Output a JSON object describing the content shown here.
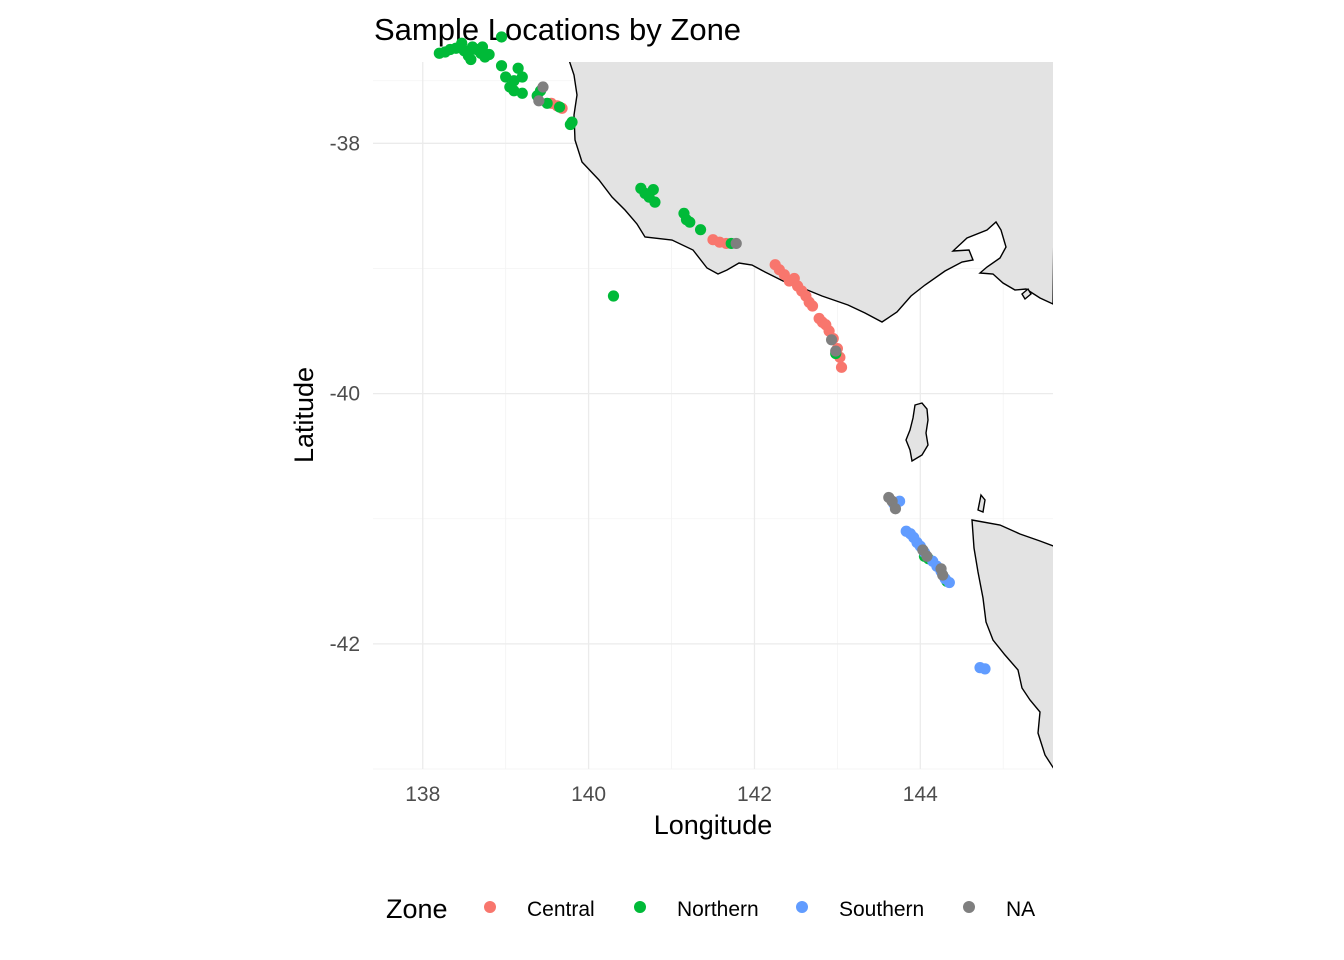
{
  "chart_data": {
    "type": "scatter",
    "title": "Sample Locations by Zone",
    "xlabel": "Longitude",
    "ylabel": "Latitude",
    "xlim": [
      137.4,
      145.6
    ],
    "ylim": [
      -43.0,
      -37.35
    ],
    "x_ticks": [
      {
        "value": 138,
        "label": "138"
      },
      {
        "value": 140,
        "label": "140"
      },
      {
        "value": 142,
        "label": "142"
      },
      {
        "value": 144,
        "label": "144"
      }
    ],
    "y_ticks": [
      {
        "value": -38,
        "label": "-38"
      },
      {
        "value": -40,
        "label": "-40"
      },
      {
        "value": -42,
        "label": "-42"
      }
    ],
    "grid": true,
    "legend": {
      "title": "Zone",
      "position": "bottom"
    },
    "basemap": "coastline with land filled light grey",
    "series": [
      {
        "name": "Central",
        "color": "#F8766D",
        "points": [
          [
            139.55,
            -37.68
          ],
          [
            139.62,
            -37.7
          ],
          [
            139.68,
            -37.72
          ],
          [
            141.5,
            -38.77
          ],
          [
            141.58,
            -38.79
          ],
          [
            141.66,
            -38.8
          ],
          [
            142.25,
            -38.97
          ],
          [
            142.3,
            -39.01
          ],
          [
            142.36,
            -39.05
          ],
          [
            142.42,
            -39.1
          ],
          [
            142.48,
            -39.08
          ],
          [
            142.52,
            -39.14
          ],
          [
            142.57,
            -39.18
          ],
          [
            142.62,
            -39.22
          ],
          [
            142.66,
            -39.27
          ],
          [
            142.7,
            -39.3
          ],
          [
            142.78,
            -39.4
          ],
          [
            142.82,
            -39.43
          ],
          [
            142.86,
            -39.45
          ],
          [
            142.9,
            -39.5
          ],
          [
            142.95,
            -39.56
          ],
          [
            143.0,
            -39.64
          ],
          [
            143.03,
            -39.71
          ],
          [
            143.05,
            -39.79
          ]
        ]
      },
      {
        "name": "Northern",
        "color": "#00BA38",
        "points": [
          [
            138.2,
            -37.28
          ],
          [
            138.27,
            -37.27
          ],
          [
            138.33,
            -37.25
          ],
          [
            138.4,
            -37.24
          ],
          [
            138.46,
            -37.22
          ],
          [
            138.5,
            -37.26
          ],
          [
            138.55,
            -37.3
          ],
          [
            138.6,
            -37.23
          ],
          [
            138.65,
            -37.25
          ],
          [
            138.7,
            -37.28
          ],
          [
            138.75,
            -37.31
          ],
          [
            138.8,
            -37.29
          ],
          [
            138.47,
            -37.2
          ],
          [
            138.58,
            -37.33
          ],
          [
            138.72,
            -37.23
          ],
          [
            138.95,
            -37.15
          ],
          [
            138.95,
            -37.38
          ],
          [
            139.0,
            -37.47
          ],
          [
            139.05,
            -37.55
          ],
          [
            139.1,
            -37.58
          ],
          [
            139.15,
            -37.4
          ],
          [
            139.2,
            -37.47
          ],
          [
            139.1,
            -37.5
          ],
          [
            139.2,
            -37.6
          ],
          [
            139.38,
            -37.62
          ],
          [
            139.42,
            -37.58
          ],
          [
            139.5,
            -37.68
          ],
          [
            139.65,
            -37.71
          ],
          [
            139.8,
            -37.83
          ],
          [
            139.78,
            -37.85
          ],
          [
            140.3,
            -39.22
          ],
          [
            140.63,
            -38.36
          ],
          [
            140.68,
            -38.4
          ],
          [
            140.73,
            -38.43
          ],
          [
            140.78,
            -38.37
          ],
          [
            140.8,
            -38.47
          ],
          [
            141.15,
            -38.56
          ],
          [
            141.18,
            -38.61
          ],
          [
            141.22,
            -38.63
          ],
          [
            141.35,
            -38.69
          ],
          [
            141.72,
            -38.8
          ],
          [
            142.98,
            -39.68
          ],
          [
            144.05,
            -41.3
          ],
          [
            144.1,
            -41.32
          ],
          [
            144.32,
            -41.5
          ]
        ]
      },
      {
        "name": "Southern",
        "color": "#619CFF",
        "points": [
          [
            143.68,
            -40.88
          ],
          [
            143.75,
            -40.86
          ],
          [
            143.83,
            -41.1
          ],
          [
            143.88,
            -41.12
          ],
          [
            143.92,
            -41.15
          ],
          [
            143.96,
            -41.19
          ],
          [
            144.0,
            -41.22
          ],
          [
            144.05,
            -41.27
          ],
          [
            144.15,
            -41.34
          ],
          [
            144.2,
            -41.38
          ],
          [
            144.25,
            -41.42
          ],
          [
            144.3,
            -41.48
          ],
          [
            144.35,
            -41.51
          ],
          [
            144.72,
            -42.19
          ],
          [
            144.78,
            -42.2
          ]
        ]
      },
      {
        "name": "NA",
        "color": "#7F7F7F",
        "points": [
          [
            139.4,
            -37.66
          ],
          [
            139.45,
            -37.55
          ],
          [
            141.78,
            -38.8
          ],
          [
            142.93,
            -39.57
          ],
          [
            142.98,
            -39.66
          ],
          [
            143.62,
            -40.83
          ],
          [
            143.66,
            -40.86
          ],
          [
            143.7,
            -40.92
          ],
          [
            144.03,
            -41.25
          ],
          [
            144.08,
            -41.3
          ],
          [
            144.25,
            -41.4
          ],
          [
            144.27,
            -41.45
          ]
        ]
      }
    ]
  }
}
